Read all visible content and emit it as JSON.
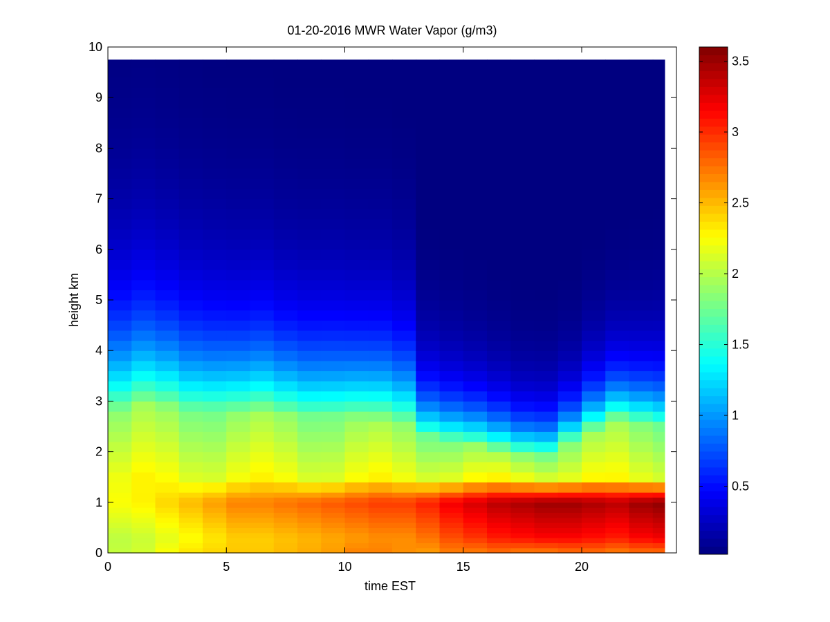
{
  "chart_data": {
    "type": "heatmap",
    "title": "01-20-2016 MWR Water Vapor (g/m3)",
    "xlabel": "time EST",
    "ylabel": "height km",
    "xlim": [
      0,
      24
    ],
    "ylim": [
      0,
      10
    ],
    "xticks": [
      0,
      5,
      10,
      15,
      20
    ],
    "yticks": [
      0,
      1,
      2,
      3,
      4,
      5,
      6,
      7,
      8,
      9,
      10
    ],
    "colorbar": {
      "colormap": "jet",
      "range": [
        0.02,
        3.6
      ],
      "ticks": [
        0.5,
        1,
        1.5,
        2,
        2.5,
        3,
        3.5
      ]
    },
    "x_hours": [
      0,
      1,
      2,
      3,
      4,
      5,
      6,
      7,
      8,
      9,
      10,
      11,
      12,
      13,
      14,
      15,
      16,
      17,
      18,
      19,
      20,
      21,
      22,
      23
    ],
    "height_km": [
      0,
      0.1,
      0.2,
      0.3,
      0.4,
      0.5,
      0.6,
      0.7,
      0.8,
      0.9,
      1.0,
      1.1,
      1.2,
      1.4,
      1.6,
      1.8,
      2.0,
      2.2,
      2.4,
      2.6,
      2.8,
      3.0,
      3.2,
      3.4,
      3.6,
      3.8,
      4.0,
      4.2,
      4.4,
      4.6,
      4.8,
      5.0,
      5.2,
      5.4,
      5.6,
      5.8,
      6.0,
      6.2,
      6.4,
      6.6,
      6.8,
      7.0,
      7.2,
      7.4,
      7.6,
      7.8,
      8.0,
      8.2,
      8.4,
      8.6,
      8.8,
      9.0,
      9.2,
      9.4,
      9.6,
      9.75
    ],
    "surface_value": [
      2.05,
      2.1,
      2.25,
      2.35,
      2.4,
      2.45,
      2.45,
      2.5,
      2.55,
      2.6,
      2.7,
      2.7,
      2.65,
      2.6,
      2.7,
      2.7,
      2.75,
      2.7,
      2.7,
      2.75,
      2.75,
      2.7,
      2.75,
      2.75
    ],
    "lowlevel_peak": [
      2.25,
      2.3,
      2.4,
      2.5,
      2.6,
      2.7,
      2.7,
      2.75,
      2.8,
      2.85,
      2.9,
      2.95,
      2.95,
      3.05,
      3.2,
      3.3,
      3.4,
      3.45,
      3.5,
      3.5,
      3.45,
      3.4,
      3.5,
      3.55
    ],
    "moist_layer_top_km": [
      2.8,
      2.9,
      2.85,
      2.8,
      2.8,
      2.75,
      2.75,
      2.7,
      2.7,
      2.7,
      2.65,
      2.6,
      2.55,
      2.3,
      2.2,
      2.1,
      2.0,
      1.95,
      1.95,
      2.2,
      2.4,
      2.6,
      2.55,
      2.5
    ],
    "upper_scale_height_km": [
      1.75,
      1.75,
      1.7,
      1.65,
      1.6,
      1.55,
      1.55,
      1.5,
      1.5,
      1.5,
      1.45,
      1.45,
      1.4,
      0.95,
      0.9,
      0.85,
      0.8,
      0.75,
      0.75,
      0.75,
      0.85,
      0.9,
      0.95,
      1.0
    ]
  }
}
